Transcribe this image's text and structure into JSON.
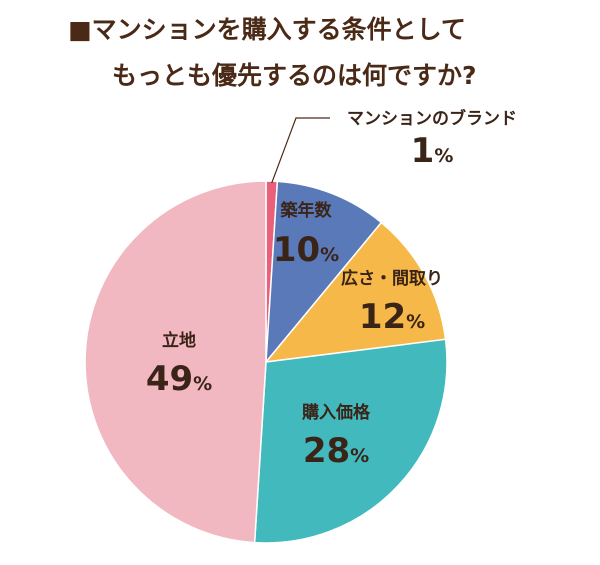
{
  "chart_data": {
    "type": "pie",
    "title_lines": [
      "■マンションを購入する条件として",
      "もっとも優先するのは何ですか?"
    ],
    "percent_sign": "%",
    "slices": [
      {
        "label": "マンションのブランド",
        "value": 1,
        "color": "#e8607a"
      },
      {
        "label": "築年数",
        "value": 10,
        "color": "#5a79b8"
      },
      {
        "label": "広さ・間取り",
        "value": 12,
        "color": "#f7b84a"
      },
      {
        "label": "購入価格",
        "value": 28,
        "color": "#41b9bd"
      },
      {
        "label": "立地",
        "value": 49,
        "color": "#f2b8c2"
      }
    ]
  }
}
